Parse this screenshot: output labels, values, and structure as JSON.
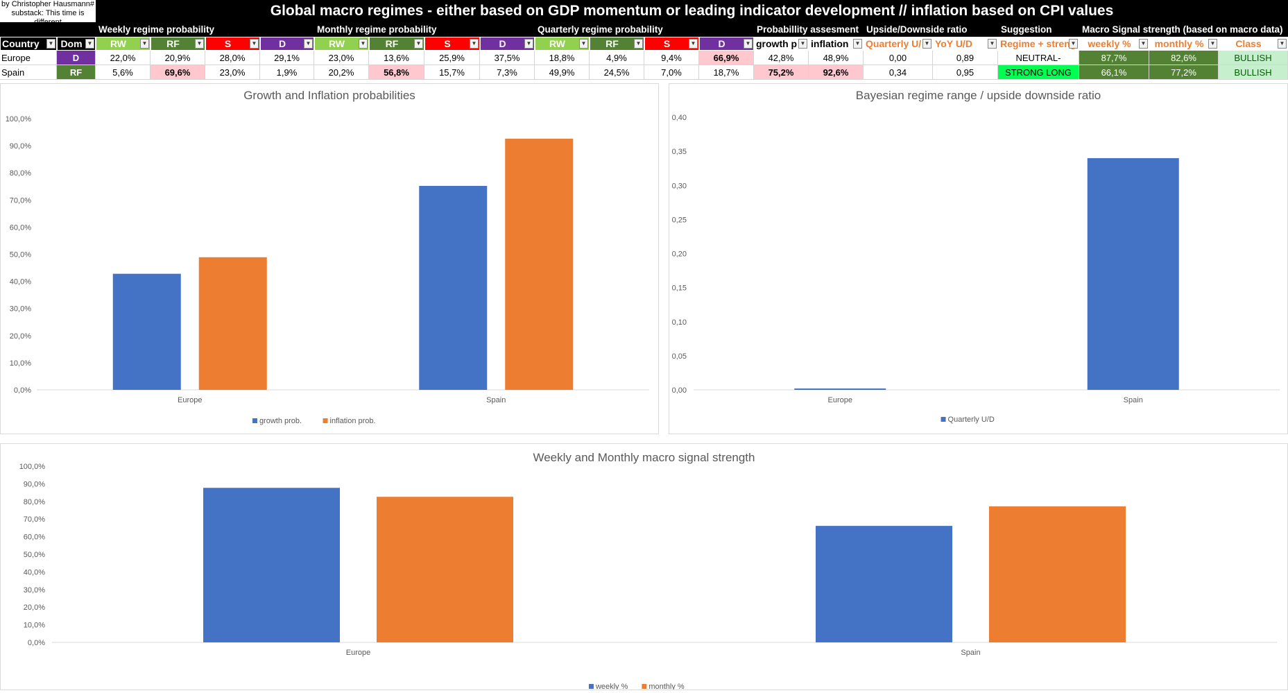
{
  "header": {
    "byline": "by Christopher Hausmann# substack: This time is different",
    "title": "Global macro regimes - either based on GDP momentum or leading indicator development // inflation based on CPI values"
  },
  "sections": {
    "weekly": "Weekly regime probability",
    "monthly": "Monthly regime probability",
    "quarterly": "Quarterly regime probability",
    "prob": "Probabillity assesment",
    "ud": "Upside/Downside ratio",
    "suggestion": "Suggestion",
    "signal": "Macro Signal strength (based on macro data)"
  },
  "columns": {
    "country": "Country",
    "dom": "Dom",
    "rw": "RW",
    "rf": "RF",
    "s": "S",
    "d": "D",
    "growth": "growth p",
    "inflation": "inflation",
    "quarterly_ud": "Quarterly U/",
    "yoy_ud": "YoY U/D",
    "regime": "Regime + streng",
    "weekly_pct": "weekly %",
    "monthly_pct": "monthly %",
    "class": "Class"
  },
  "rows": [
    {
      "country": "Europe",
      "dom": "D",
      "weekly": [
        "22,0%",
        "20,9%",
        "28,0%",
        "29,1%"
      ],
      "monthly": [
        "23,0%",
        "13,6%",
        "25,9%",
        "37,5%"
      ],
      "quarterly": [
        "18,8%",
        "4,9%",
        "9,4%",
        "66,9%"
      ],
      "growth": "42,8%",
      "inflation": "48,9%",
      "quarterly_ud": "0,00",
      "yoy_ud": "0,89",
      "suggestion": "NEUTRAL-",
      "weekly_pct": "87,7%",
      "monthly_pct": "82,6%",
      "class": "BULLISH"
    },
    {
      "country": "Spain",
      "dom": "RF",
      "weekly": [
        "5,6%",
        "69,6%",
        "23,0%",
        "1,9%"
      ],
      "monthly": [
        "20,2%",
        "56,8%",
        "15,7%",
        "7,3%"
      ],
      "quarterly": [
        "49,9%",
        "24,5%",
        "7,0%",
        "18,7%"
      ],
      "growth": "75,2%",
      "inflation": "92,6%",
      "quarterly_ud": "0,34",
      "yoy_ud": "0,95",
      "suggestion": "STRONG LONG",
      "weekly_pct": "66,1%",
      "monthly_pct": "77,2%",
      "class": "BULLISH"
    }
  ],
  "colors": {
    "rw": "#92d050",
    "rf": "#548235",
    "s": "#ff0000",
    "d": "#7030a0",
    "highlight": "#ffc7ce",
    "strong_long": "#00ff50",
    "signal_green": "#548235",
    "class_bg": "#c6efce",
    "class_text": "#006100",
    "orange_text": "#ed7d31",
    "series_blue": "#4472c4",
    "series_orange": "#ed7d31"
  },
  "chart_data": [
    {
      "type": "bar",
      "title": "Growth and Inflation probabilities",
      "categories": [
        "Europe",
        "Spain"
      ],
      "series": [
        {
          "name": "growth prob.",
          "values": [
            42.8,
            75.2
          ]
        },
        {
          "name": "inflation prob.",
          "values": [
            48.9,
            92.6
          ]
        }
      ],
      "ylim": [
        0,
        100
      ],
      "yticks": [
        "0,0%",
        "10,0%",
        "20,0%",
        "30,0%",
        "40,0%",
        "50,0%",
        "60,0%",
        "70,0%",
        "80,0%",
        "90,0%",
        "100,0%"
      ],
      "legend": "bottom"
    },
    {
      "type": "bar",
      "title": "Bayesian regime range / upside downside ratio",
      "categories": [
        "Europe",
        "Spain"
      ],
      "series": [
        {
          "name": "Quarterly U/D",
          "values": [
            0.002,
            0.34
          ]
        }
      ],
      "ylim": [
        0,
        0.4
      ],
      "yticks": [
        "0,00",
        "0,05",
        "0,10",
        "0,15",
        "0,20",
        "0,25",
        "0,30",
        "0,35",
        "0,40"
      ],
      "legend": "bottom"
    },
    {
      "type": "bar",
      "title": "Weekly and Monthly macro signal strength",
      "categories": [
        "Europe",
        "Spain"
      ],
      "series": [
        {
          "name": "weekly %",
          "values": [
            87.7,
            66.1
          ]
        },
        {
          "name": "monthly %",
          "values": [
            82.6,
            77.2
          ]
        }
      ],
      "ylim": [
        0,
        100
      ],
      "yticks": [
        "0,0%",
        "10,0%",
        "20,0%",
        "30,0%",
        "40,0%",
        "50,0%",
        "60,0%",
        "70,0%",
        "80,0%",
        "90,0%",
        "100,0%"
      ],
      "legend": "bottom"
    }
  ]
}
